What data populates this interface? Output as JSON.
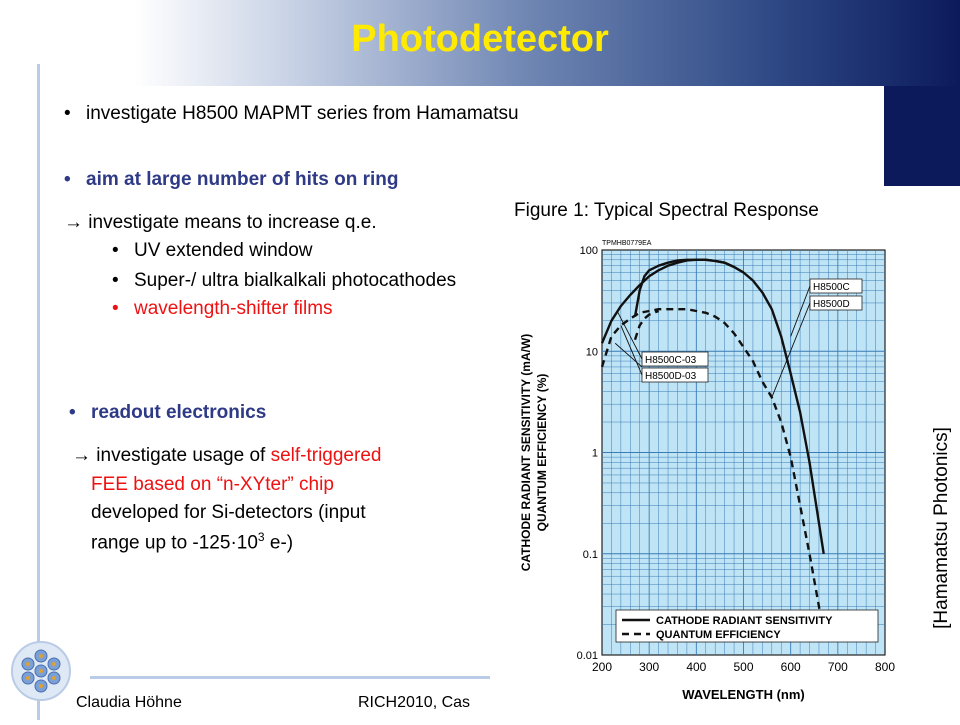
{
  "slide": {
    "title": "Photodetector",
    "bullets": {
      "b1": "investigate H8500 MAPMT series from Hamamatsu",
      "b2": "aim at large number of hits on ring",
      "arrow1": "→ investigate means to increase q.e.",
      "sub1": "UV extended window",
      "sub2": "Super-/ ultra bialkalkali photocathodes",
      "sub3": "wavelength-shifter films",
      "b3": "readout electronics",
      "arrow2_prefix": "→ investigate usage of ",
      "arrow2_red1": "self-triggered",
      "arrow2_red2": "FEE based on “n-XYter” chip",
      "line3": "developed for Si-detectors (input",
      "line4_pre": "range up to -125·10",
      "line4_sup": "3",
      "line4_post": " e-)"
    },
    "credit": "[Hamamatsu Photonics]",
    "footer": {
      "author": "Claudia Höhne",
      "conference": "RICH2010, Cas"
    },
    "colors": {
      "title": "#ffea00",
      "bold_bullet": "#2e3a86",
      "red_text": "#ee1111",
      "plot_background": "#bfe4f5",
      "grid": "#3a7bb5"
    }
  },
  "chart_data": {
    "type": "line",
    "title": "Figure 1: Typical Spectral Response",
    "code": "TPMHB0779EA",
    "xlabel": "WAVELENGTH (nm)",
    "ylabel_line1": "CATHODE RADIANT SENSITIVITY (mA/W)",
    "ylabel_line2": "QUANTUM EFFICIENCY (%)",
    "xlim": [
      200,
      800
    ],
    "ylim": [
      0.01,
      100
    ],
    "yscale": "log",
    "grid": true,
    "x_ticks": [
      "200",
      "300",
      "400",
      "500",
      "600",
      "700",
      "800"
    ],
    "y_ticks": [
      "0.01",
      "0.1",
      "1",
      "10",
      "100"
    ],
    "legend_position": "bottom",
    "legend": [
      "CATHODE RADIANT SENSITIVITY",
      "QUANTUM EFFICIENCY"
    ],
    "annotations": [
      "H8500C",
      "H8500D",
      "H8500C-03",
      "H8500D-03"
    ],
    "series": [
      {
        "name": "H8500C-03 / H8500D-03",
        "style": "solid",
        "x": [
          200,
          220,
          240,
          260,
          280,
          300,
          320,
          340,
          360,
          380,
          400,
          420,
          440,
          460,
          480,
          500,
          520,
          540,
          560,
          580,
          600,
          620,
          640,
          660,
          670
        ],
        "y": [
          12,
          20,
          28,
          36,
          45,
          55,
          63,
          70,
          75,
          79,
          80,
          80,
          78,
          75,
          68,
          60,
          50,
          38,
          26,
          14,
          6,
          2.5,
          0.8,
          0.2,
          0.1
        ]
      },
      {
        "name": "H8500C / H8500D",
        "style": "solid",
        "x": [
          270,
          280,
          290,
          300,
          320,
          340,
          360,
          380,
          400,
          420,
          440,
          460,
          480,
          500
        ],
        "y": [
          22,
          40,
          55,
          63,
          70,
          75,
          79,
          80,
          80,
          80,
          78,
          75,
          68,
          60
        ]
      },
      {
        "name": "QUANTUM EFFICIENCY -03",
        "style": "dashed",
        "x": [
          200,
          220,
          240,
          260,
          280,
          300,
          320,
          340,
          360,
          380,
          400,
          420,
          440,
          460,
          480,
          500,
          520,
          540,
          560,
          580,
          600,
          620,
          640,
          660,
          670
        ],
        "y": [
          7,
          14,
          18,
          21,
          24,
          25,
          26,
          26,
          26,
          26,
          25,
          24,
          22,
          19,
          15,
          11,
          8,
          5,
          3.5,
          2,
          0.9,
          0.3,
          0.1,
          0.03,
          0.015
        ]
      },
      {
        "name": "QUANTUM EFFICIENCY",
        "style": "dashed",
        "x": [
          270,
          280,
          290,
          300,
          320
        ],
        "y": [
          13,
          18,
          21,
          23,
          25
        ]
      }
    ]
  }
}
